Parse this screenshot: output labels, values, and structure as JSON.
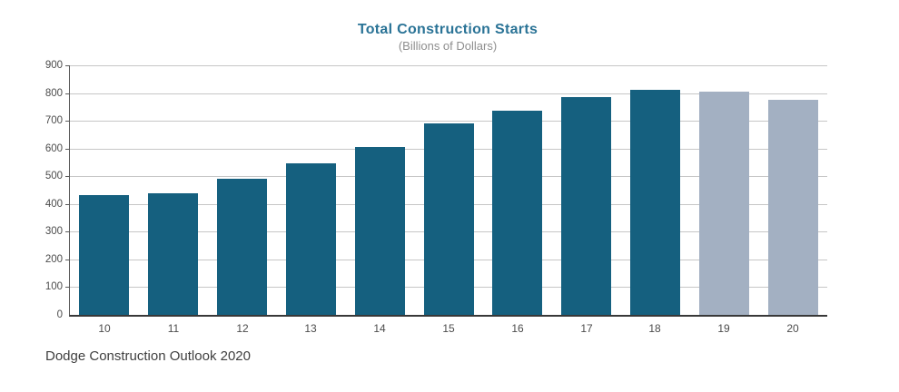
{
  "figure": {
    "title": "Total Construction Starts",
    "subtitle": "(Billions of Dollars)",
    "caption": "Dodge Construction Outlook 2020"
  },
  "colors": {
    "bar_actual": "#15607f",
    "bar_forecast": "#a3b0c2",
    "title_text": "#2a7396",
    "subtitle_text": "#8e8e8e",
    "caption_text": "#3f3f3f",
    "gridline": "#c6c6c6",
    "y_axis_line": "#5a5a5a",
    "x_axis_line": "#383838",
    "tick_label": "#4c4c4c"
  },
  "chart_data": {
    "type": "bar",
    "title": "Total Construction Starts",
    "subtitle": "(Billions of Dollars)",
    "categories": [
      "10",
      "11",
      "12",
      "13",
      "14",
      "15",
      "16",
      "17",
      "18",
      "19",
      "20"
    ],
    "values": [
      433,
      440,
      490,
      545,
      605,
      690,
      737,
      785,
      812,
      806,
      776
    ],
    "bar_roles": [
      "actual",
      "actual",
      "actual",
      "actual",
      "actual",
      "actual",
      "actual",
      "actual",
      "actual",
      "forecast",
      "forecast"
    ],
    "xlabel": "",
    "ylabel": "",
    "ylim": [
      0,
      900
    ],
    "ytick_step": 100,
    "grid": true,
    "legend": "none",
    "source_caption": "Dodge Construction Outlook 2020"
  }
}
